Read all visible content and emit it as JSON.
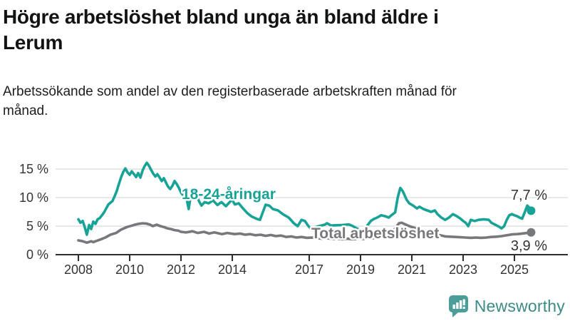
{
  "header": {
    "title": "Högre arbetslöshet bland unga än bland äldre i Lerum",
    "subtitle": "Arbetssökande som andel av den registerbaserade arbetskraften månad för månad."
  },
  "chart_data": {
    "type": "line",
    "title": "Högre arbetslöshet bland unga än bland äldre i Lerum",
    "subtitle": "Arbetssökande som andel av den registerbaserade arbetskraften månad för månad.",
    "unit": "%",
    "grid": true,
    "legend_position": "inline-labels",
    "xlim": [
      2008,
      2026
    ],
    "ylim": [
      0,
      17
    ],
    "x_tick_values": [
      2008,
      2010,
      2012,
      2014,
      2017,
      2019,
      2021,
      2023,
      2025
    ],
    "x_tick_labels": [
      "2008",
      "2010",
      "2012",
      "2014",
      "2017",
      "2019",
      "2021",
      "2023",
      "2025"
    ],
    "y_tick_values": [
      0,
      5,
      10,
      15
    ],
    "y_tick_labels": [
      "0 %",
      "5 %",
      "10 %",
      "15 %"
    ],
    "series": [
      {
        "name": "Total arbetslöshet",
        "color": "#77787b",
        "end_label": "3,9 %",
        "end_value": 3.9,
        "points": [
          [
            2008.0,
            2.5
          ],
          [
            2008.17,
            2.35
          ],
          [
            2008.33,
            2.1
          ],
          [
            2008.5,
            2.35
          ],
          [
            2008.58,
            2.2
          ],
          [
            2008.67,
            2.35
          ],
          [
            2008.83,
            2.6
          ],
          [
            2009.05,
            3.0
          ],
          [
            2009.25,
            3.5
          ],
          [
            2009.47,
            3.8
          ],
          [
            2009.67,
            4.4
          ],
          [
            2009.9,
            4.85
          ],
          [
            2010.1,
            5.1
          ],
          [
            2010.2,
            5.25
          ],
          [
            2010.35,
            5.4
          ],
          [
            2010.5,
            5.5
          ],
          [
            2010.65,
            5.45
          ],
          [
            2010.8,
            5.25
          ],
          [
            2010.9,
            5.0
          ],
          [
            2011.05,
            5.25
          ],
          [
            2011.2,
            5.0
          ],
          [
            2011.33,
            4.85
          ],
          [
            2011.47,
            4.6
          ],
          [
            2011.6,
            4.5
          ],
          [
            2011.75,
            4.3
          ],
          [
            2011.9,
            4.2
          ],
          [
            2012.0,
            4.0
          ],
          [
            2012.2,
            3.9
          ],
          [
            2012.45,
            4.1
          ],
          [
            2012.65,
            3.8
          ],
          [
            2012.9,
            4.0
          ],
          [
            2013.1,
            3.7
          ],
          [
            2013.3,
            3.9
          ],
          [
            2013.6,
            3.6
          ],
          [
            2013.8,
            3.8
          ],
          [
            2014.1,
            3.6
          ],
          [
            2014.3,
            3.7
          ],
          [
            2014.5,
            3.5
          ],
          [
            2014.7,
            3.6
          ],
          [
            2014.9,
            3.4
          ],
          [
            2015.1,
            3.5
          ],
          [
            2015.3,
            3.3
          ],
          [
            2015.5,
            3.45
          ],
          [
            2015.7,
            3.25
          ],
          [
            2015.9,
            3.35
          ],
          [
            2016.1,
            3.1
          ],
          [
            2016.3,
            3.2
          ],
          [
            2016.5,
            3.0
          ],
          [
            2016.7,
            3.1
          ],
          [
            2016.9,
            2.95
          ],
          [
            2017.1,
            3.0
          ],
          [
            2017.3,
            2.9
          ],
          [
            2017.5,
            2.8
          ],
          [
            2017.7,
            2.9
          ],
          [
            2017.9,
            2.75
          ],
          [
            2018.1,
            2.8
          ],
          [
            2018.3,
            2.7
          ],
          [
            2018.5,
            2.8
          ],
          [
            2018.7,
            2.7
          ],
          [
            2018.9,
            2.8
          ],
          [
            2019.1,
            2.75
          ],
          [
            2019.3,
            2.85
          ],
          [
            2019.5,
            2.9
          ],
          [
            2019.7,
            3.0
          ],
          [
            2019.9,
            3.1
          ],
          [
            2020.1,
            3.4
          ],
          [
            2020.3,
            4.3
          ],
          [
            2020.5,
            5.5
          ],
          [
            2020.6,
            5.6
          ],
          [
            2020.75,
            5.3
          ],
          [
            2020.9,
            5.0
          ],
          [
            2021.1,
            4.7
          ],
          [
            2021.3,
            4.5
          ],
          [
            2021.5,
            4.2
          ],
          [
            2021.7,
            3.9
          ],
          [
            2021.9,
            3.6
          ],
          [
            2022.1,
            3.4
          ],
          [
            2022.3,
            3.2
          ],
          [
            2022.5,
            3.15
          ],
          [
            2022.7,
            3.1
          ],
          [
            2022.9,
            3.05
          ],
          [
            2023.1,
            3.0
          ],
          [
            2023.3,
            2.95
          ],
          [
            2023.5,
            3.0
          ],
          [
            2023.7,
            2.95
          ],
          [
            2023.9,
            3.0
          ],
          [
            2024.1,
            3.1
          ],
          [
            2024.3,
            3.15
          ],
          [
            2024.5,
            3.25
          ],
          [
            2024.7,
            3.4
          ],
          [
            2024.9,
            3.55
          ],
          [
            2025.1,
            3.6
          ],
          [
            2025.3,
            3.7
          ],
          [
            2025.5,
            3.8
          ],
          [
            2025.65,
            3.9
          ]
        ]
      },
      {
        "name": "18-24-åringar",
        "color": "#18a396",
        "end_label": "7,7 %",
        "end_value": 7.7,
        "points": [
          [
            2008.0,
            6.2
          ],
          [
            2008.08,
            5.6
          ],
          [
            2008.17,
            5.9
          ],
          [
            2008.25,
            4.8
          ],
          [
            2008.33,
            3.5
          ],
          [
            2008.42,
            5.2
          ],
          [
            2008.5,
            4.5
          ],
          [
            2008.58,
            5.8
          ],
          [
            2008.67,
            5.4
          ],
          [
            2008.75,
            6.2
          ],
          [
            2008.83,
            6.4
          ],
          [
            2008.92,
            6.9
          ],
          [
            2009.0,
            7.4
          ],
          [
            2009.17,
            8.8
          ],
          [
            2009.33,
            9.4
          ],
          [
            2009.42,
            10.3
          ],
          [
            2009.5,
            11.2
          ],
          [
            2009.58,
            12.4
          ],
          [
            2009.67,
            13.6
          ],
          [
            2009.75,
            14.5
          ],
          [
            2009.83,
            15.1
          ],
          [
            2009.92,
            14.4
          ],
          [
            2010.0,
            14.0
          ],
          [
            2010.08,
            14.6
          ],
          [
            2010.17,
            14.1
          ],
          [
            2010.25,
            13.6
          ],
          [
            2010.33,
            14.3
          ],
          [
            2010.42,
            13.5
          ],
          [
            2010.5,
            14.7
          ],
          [
            2010.58,
            15.5
          ],
          [
            2010.67,
            16.1
          ],
          [
            2010.75,
            15.6
          ],
          [
            2010.83,
            14.9
          ],
          [
            2010.92,
            14.2
          ],
          [
            2011.0,
            13.7
          ],
          [
            2011.08,
            14.1
          ],
          [
            2011.17,
            13.5
          ],
          [
            2011.25,
            12.9
          ],
          [
            2011.33,
            13.4
          ],
          [
            2011.42,
            12.6
          ],
          [
            2011.5,
            11.9
          ],
          [
            2011.58,
            11.5
          ],
          [
            2011.67,
            12.1
          ],
          [
            2011.75,
            12.9
          ],
          [
            2011.83,
            12.4
          ],
          [
            2011.92,
            11.7
          ],
          [
            2012.0,
            10.9
          ],
          [
            2012.08,
            10.4
          ],
          [
            2012.17,
            11.0
          ],
          [
            2012.3,
            8.0
          ],
          [
            2012.42,
            11.4
          ],
          [
            2012.5,
            11.2
          ],
          [
            2012.6,
            10.4
          ],
          [
            2012.7,
            9.4
          ],
          [
            2012.8,
            8.6
          ],
          [
            2012.92,
            9.2
          ],
          [
            2013.08,
            9.0
          ],
          [
            2013.25,
            9.5
          ],
          [
            2013.42,
            8.7
          ],
          [
            2013.58,
            9.2
          ],
          [
            2013.75,
            8.5
          ],
          [
            2013.92,
            9.3
          ],
          [
            2014.0,
            9.6
          ],
          [
            2014.1,
            8.8
          ],
          [
            2014.25,
            9.0
          ],
          [
            2014.42,
            8.1
          ],
          [
            2014.58,
            7.3
          ],
          [
            2014.75,
            6.7
          ],
          [
            2014.94,
            6.3
          ],
          [
            2015.08,
            6.1
          ],
          [
            2015.3,
            8.75
          ],
          [
            2015.44,
            8.6
          ],
          [
            2015.58,
            8.0
          ],
          [
            2015.78,
            7.75
          ],
          [
            2015.97,
            7.1
          ],
          [
            2016.2,
            6.5
          ],
          [
            2016.4,
            5.5
          ],
          [
            2016.55,
            5.0
          ],
          [
            2016.7,
            6.1
          ],
          [
            2016.83,
            5.9
          ],
          [
            2016.97,
            5.0
          ],
          [
            2017.1,
            4.4
          ],
          [
            2017.3,
            4.9
          ],
          [
            2017.6,
            5.25
          ],
          [
            2017.7,
            5.5
          ],
          [
            2017.85,
            5.1
          ],
          [
            2018.0,
            5.15
          ],
          [
            2018.3,
            5.2
          ],
          [
            2018.55,
            5.3
          ],
          [
            2018.7,
            5.0
          ],
          [
            2018.85,
            4.6
          ],
          [
            2019.0,
            4.3
          ],
          [
            2019.1,
            4.1
          ],
          [
            2019.25,
            5.0
          ],
          [
            2019.4,
            5.9
          ],
          [
            2019.5,
            6.2
          ],
          [
            2019.65,
            6.5
          ],
          [
            2019.8,
            6.9
          ],
          [
            2019.95,
            6.75
          ],
          [
            2020.1,
            6.5
          ],
          [
            2020.2,
            6.9
          ],
          [
            2020.35,
            7.4
          ],
          [
            2020.45,
            10.0
          ],
          [
            2020.55,
            11.7
          ],
          [
            2020.65,
            11.1
          ],
          [
            2020.8,
            9.6
          ],
          [
            2020.9,
            9.0
          ],
          [
            2021.05,
            8.6
          ],
          [
            2021.2,
            8.1
          ],
          [
            2021.3,
            8.4
          ],
          [
            2021.45,
            8.0
          ],
          [
            2021.6,
            7.75
          ],
          [
            2021.75,
            7.5
          ],
          [
            2021.9,
            7.75
          ],
          [
            2022.0,
            7.1
          ],
          [
            2022.15,
            6.5
          ],
          [
            2022.3,
            6.1
          ],
          [
            2022.45,
            6.5
          ],
          [
            2022.6,
            7.1
          ],
          [
            2022.75,
            6.75
          ],
          [
            2022.9,
            6.3
          ],
          [
            2023.0,
            5.9
          ],
          [
            2023.1,
            5.6
          ],
          [
            2023.2,
            5.0
          ],
          [
            2023.3,
            6.1
          ],
          [
            2023.45,
            5.9
          ],
          [
            2023.6,
            6.1
          ],
          [
            2023.8,
            6.2
          ],
          [
            2024.0,
            6.1
          ],
          [
            2024.1,
            5.6
          ],
          [
            2024.25,
            5.25
          ],
          [
            2024.4,
            4.9
          ],
          [
            2024.5,
            4.6
          ],
          [
            2024.6,
            5.0
          ],
          [
            2024.7,
            6.1
          ],
          [
            2024.8,
            6.9
          ],
          [
            2024.9,
            7.1
          ],
          [
            2025.0,
            6.9
          ],
          [
            2025.1,
            6.75
          ],
          [
            2025.2,
            6.5
          ],
          [
            2025.3,
            6.3
          ],
          [
            2025.4,
            7.4
          ],
          [
            2025.5,
            8.6
          ],
          [
            2025.55,
            8.4
          ],
          [
            2025.65,
            7.7
          ]
        ]
      }
    ]
  },
  "branding": {
    "name": "Newsworthy",
    "icon": "newsworthy-chart-bubble-icon",
    "text_color": "#3d8b86",
    "icon_color": "#4a9d98"
  }
}
